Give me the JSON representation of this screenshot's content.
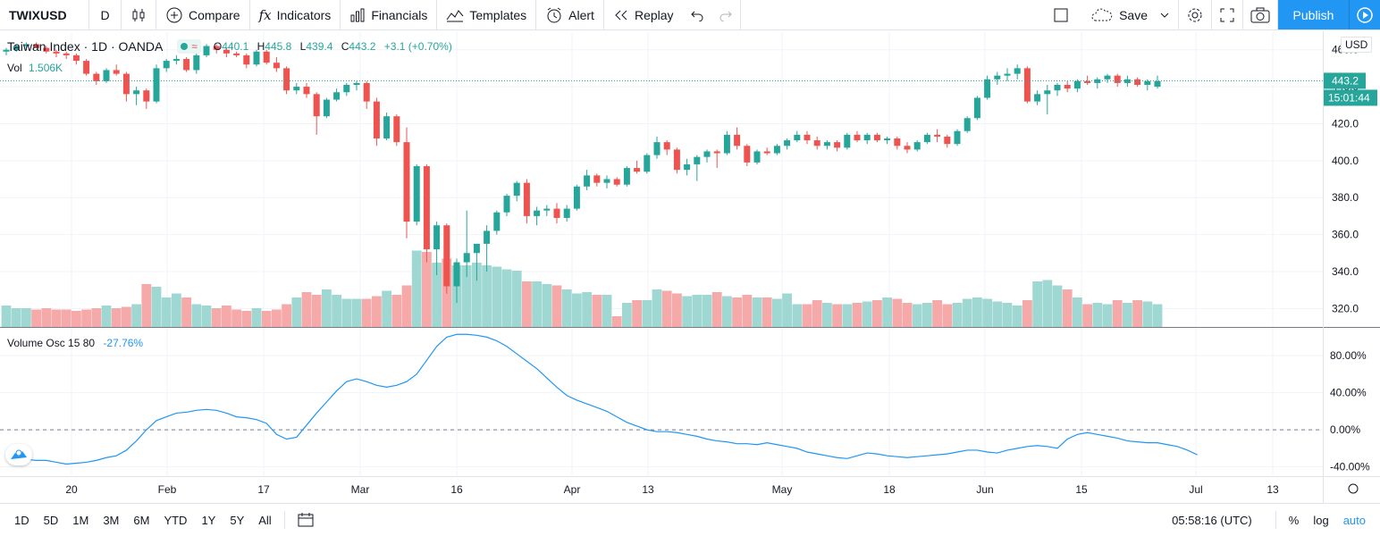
{
  "toolbar": {
    "symbol": "TWIXUSD",
    "interval": "D",
    "compare": "Compare",
    "indicators": "Indicators",
    "financials": "Financials",
    "templates": "Templates",
    "alert": "Alert",
    "replay": "Replay",
    "save": "Save",
    "publish": "Publish",
    "colors": {
      "accent": "#2196f3"
    }
  },
  "legend": {
    "title": "Taiwan Index · 1D · OANDA",
    "open_label": "O",
    "open": "440.1",
    "high_label": "H",
    "high": "445.8",
    "low_label": "L",
    "low": "439.4",
    "close_label": "C",
    "close": "443.2",
    "change": "+3.1 (+0.70%)",
    "vol_label": "Vol",
    "vol_value": "1.506K",
    "osc_label": "Volume Osc 15 80",
    "osc_value": "-27.76%"
  },
  "price_axis": {
    "currency": "USD",
    "top_partial": "4",
    "current_price": "443.2",
    "countdown": "15:01:44"
  },
  "time_axis": {
    "labels": [
      "20",
      "Feb",
      "17",
      "Mar",
      "16",
      "Apr",
      "13",
      "May",
      "18",
      "Jun",
      "15",
      "Jul",
      "13"
    ]
  },
  "bottom": {
    "ranges": [
      "1D",
      "5D",
      "1M",
      "3M",
      "6M",
      "YTD",
      "1Y",
      "5Y",
      "All"
    ],
    "time": "05:58:16 (UTC)",
    "percent": "%",
    "log": "log",
    "auto": "auto"
  },
  "chart_data": [
    {
      "type": "candlestick",
      "title": "Taiwan Index · 1D · OANDA",
      "xlabel": "",
      "ylabel": "",
      "ylim": [
        310,
        470
      ],
      "yticks": [
        320.0,
        340.0,
        360.0,
        380.0,
        400.0,
        420.0,
        440.0,
        460.0
      ],
      "current_price": 443.2,
      "up_color": "#26a69a",
      "down_color": "#ef5350",
      "series": [
        {
          "name": "OHLC",
          "values": [
            [
              459,
              461,
              457,
              460
            ],
            [
              460,
              463,
              459,
              462
            ],
            [
              462,
              464,
              460,
              463
            ],
            [
              463,
              464,
              461,
              461
            ],
            [
              461,
              462,
              458,
              459
            ],
            [
              459,
              460,
              456,
              458
            ],
            [
              458,
              459,
              455,
              457
            ],
            [
              457,
              458,
              452,
              454
            ],
            [
              454,
              455,
              446,
              447
            ],
            [
              447,
              448,
              441,
              443
            ],
            [
              443,
              450,
              442,
              449
            ],
            [
              449,
              452,
              446,
              447
            ],
            [
              447,
              448,
              432,
              436
            ],
            [
              436,
              440,
              430,
              438
            ],
            [
              438,
              439,
              428,
              432
            ],
            [
              432,
              452,
              431,
              450
            ],
            [
              450,
              455,
              448,
              454
            ],
            [
              454,
              457,
              452,
              455
            ],
            [
              455,
              456,
              448,
              449
            ],
            [
              449,
              458,
              447,
              457
            ],
            [
              457,
              463,
              456,
              462
            ],
            [
              462,
              463,
              458,
              460
            ],
            [
              460,
              461,
              456,
              458
            ],
            [
              458,
              459,
              456,
              457
            ],
            [
              457,
              458,
              450,
              452
            ],
            [
              452,
              460,
              451,
              459
            ],
            [
              459,
              460,
              452,
              453
            ],
            [
              453,
              456,
              448,
              450
            ],
            [
              450,
              451,
              436,
              438
            ],
            [
              438,
              442,
              436,
              440
            ],
            [
              440,
              442,
              434,
              436
            ],
            [
              436,
              437,
              414,
              424
            ],
            [
              424,
              434,
              423,
              433
            ],
            [
              433,
              439,
              432,
              437
            ],
            [
              437,
              442,
              435,
              441
            ],
            [
              441,
              443,
              438,
              442
            ],
            [
              442,
              443,
              428,
              432
            ],
            [
              432,
              434,
              408,
              412
            ],
            [
              412,
              426,
              411,
              424
            ],
            [
              424,
              425,
              408,
              410
            ],
            [
              410,
              418,
              358,
              367
            ],
            [
              367,
              398,
              365,
              397
            ],
            [
              397,
              398,
              345,
              352
            ],
            [
              352,
              367,
              338,
              365
            ],
            [
              365,
              366,
              328,
              332
            ],
            [
              332,
              347,
              323,
              345
            ],
            [
              345,
              373,
              337,
              350
            ],
            [
              350,
              355,
              335,
              355
            ],
            [
              355,
              365,
              340,
              362
            ],
            [
              362,
              373,
              360,
              372
            ],
            [
              372,
              382,
              370,
              381
            ],
            [
              381,
              389,
              378,
              388
            ],
            [
              388,
              390,
              366,
              370
            ],
            [
              370,
              375,
              365,
              373
            ],
            [
              373,
              376,
              370,
              374
            ],
            [
              374,
              377,
              366,
              369
            ],
            [
              369,
              376,
              367,
              374
            ],
            [
              374,
              387,
              373,
              386
            ],
            [
              386,
              395,
              384,
              392
            ],
            [
              392,
              393,
              386,
              388
            ],
            [
              388,
              392,
              385,
              390
            ],
            [
              390,
              391,
              386,
              387
            ],
            [
              387,
              397,
              386,
              396
            ],
            [
              396,
              400,
              393,
              394
            ],
            [
              394,
              404,
              393,
              403
            ],
            [
              403,
              413,
              401,
              410
            ],
            [
              410,
              411,
              403,
              406
            ],
            [
              406,
              407,
              393,
              395
            ],
            [
              395,
              401,
              392,
              398
            ],
            [
              398,
              403,
              389,
              402
            ],
            [
              402,
              406,
              399,
              405
            ],
            [
              405,
              406,
              396,
              404
            ],
            [
              404,
              416,
              403,
              414
            ],
            [
              414,
              418,
              406,
              408
            ],
            [
              408,
              409,
              397,
              399
            ],
            [
              399,
              406,
              398,
              405
            ],
            [
              405,
              407,
              403,
              404
            ],
            [
              404,
              409,
              403,
              408
            ],
            [
              408,
              412,
              406,
              411
            ],
            [
              411,
              416,
              410,
              414
            ],
            [
              414,
              416,
              409,
              411
            ],
            [
              411,
              413,
              406,
              408
            ],
            [
              408,
              411,
              406,
              410
            ],
            [
              410,
              411,
              405,
              407
            ],
            [
              407,
              415,
              406,
              414
            ],
            [
              414,
              416,
              410,
              411
            ],
            [
              411,
              415,
              409,
              414
            ],
            [
              414,
              415,
              410,
              411
            ],
            [
              411,
              413,
              409,
              412
            ],
            [
              412,
              413,
              406,
              408
            ],
            [
              408,
              410,
              404,
              406
            ],
            [
              406,
              411,
              405,
              410
            ],
            [
              410,
              415,
              409,
              414
            ],
            [
              414,
              417,
              410,
              413
            ],
            [
              413,
              414,
              407,
              409
            ],
            [
              409,
              417,
              408,
              416
            ],
            [
              416,
              424,
              415,
              423
            ],
            [
              423,
              435,
              422,
              434
            ],
            [
              434,
              446,
              433,
              444
            ],
            [
              444,
              448,
              441,
              446
            ],
            [
              446,
              450,
              443,
              447
            ],
            [
              447,
              452,
              444,
              450
            ],
            [
              450,
              451,
              431,
              432
            ],
            [
              432,
              438,
              430,
              436
            ],
            [
              436,
              441,
              425,
              438
            ],
            [
              438,
              442,
              435,
              441
            ],
            [
              441,
              443,
              437,
              439
            ],
            [
              439,
              444,
              437,
              443
            ],
            [
              443,
              446,
              441,
              442
            ],
            [
              442,
              445,
              439,
              444
            ],
            [
              444,
              447,
              442,
              446
            ],
            [
              446,
              447,
              440,
              442
            ],
            [
              442,
              446,
              440,
              444
            ],
            [
              444,
              445,
              440,
              441
            ],
            [
              441,
              444,
              438,
              443
            ],
            [
              440,
              446,
              439,
              443
            ]
          ]
        }
      ]
    },
    {
      "type": "bar",
      "title": "Vol",
      "xlabel": "",
      "ylabel": "",
      "series": [
        {
          "name": "Vol",
          "values": [
            16,
            14,
            14,
            13,
            14,
            13,
            13,
            12,
            13,
            14,
            16,
            14,
            15,
            17,
            32,
            30,
            22,
            25,
            22,
            17,
            16,
            14,
            16,
            13,
            12,
            14,
            12,
            13,
            17,
            22,
            26,
            24,
            28,
            24,
            21,
            21,
            21,
            23,
            27,
            24,
            31,
            57,
            56,
            48,
            51,
            46,
            46,
            48,
            46,
            45,
            43,
            42,
            34,
            34,
            32,
            31,
            28,
            25,
            26,
            24,
            24,
            8,
            18,
            20,
            20,
            28,
            27,
            25,
            23,
            24,
            24,
            26,
            23,
            22,
            24,
            22,
            22,
            21,
            25,
            17,
            17,
            20,
            18,
            17,
            17,
            18,
            19,
            20,
            22,
            21,
            18,
            17,
            18,
            20,
            17,
            18,
            21,
            22,
            21,
            19,
            18,
            16,
            20,
            34,
            35,
            31,
            28,
            22,
            17,
            18,
            17,
            20,
            18,
            20,
            19,
            17,
            12,
            6
          ]
        }
      ]
    },
    {
      "type": "line",
      "title": "Volume Osc 15 80",
      "xlabel": "",
      "ylabel": "",
      "ylim": [
        -50,
        110
      ],
      "yticks": [
        -40.0,
        0.0,
        40.0,
        80.0
      ],
      "series": [
        {
          "name": "Volume Osc 15 80",
          "values": [
            -28,
            -30,
            -32,
            -33,
            -33,
            -35,
            -37,
            -36,
            -35,
            -33,
            -30,
            -28,
            -22,
            -12,
            0,
            10,
            14,
            18,
            19,
            21,
            22,
            21,
            18,
            14,
            13,
            11,
            7,
            -5,
            -10,
            -8,
            5,
            18,
            30,
            42,
            52,
            55,
            52,
            48,
            46,
            48,
            52,
            60,
            75,
            90,
            100,
            103,
            103,
            102,
            100,
            96,
            90,
            82,
            74,
            66,
            56,
            46,
            37,
            32,
            28,
            24,
            20,
            14,
            8,
            4,
            0,
            -2,
            -2,
            -3,
            -5,
            -7,
            -10,
            -12,
            -13,
            -15,
            -15,
            -16,
            -14,
            -16,
            -18,
            -20,
            -24,
            -26,
            -28,
            -30,
            -31,
            -28,
            -25,
            -26,
            -28,
            -29,
            -30,
            -29,
            -28,
            -27,
            -26,
            -24,
            -22,
            -22,
            -24,
            -25,
            -22,
            -20,
            -18,
            -17,
            -18,
            -20,
            -10,
            -5,
            -3,
            -5,
            -7,
            -9,
            -12,
            -13,
            -14,
            -14,
            -16,
            -18,
            -22,
            -27
          ]
        }
      ]
    }
  ]
}
